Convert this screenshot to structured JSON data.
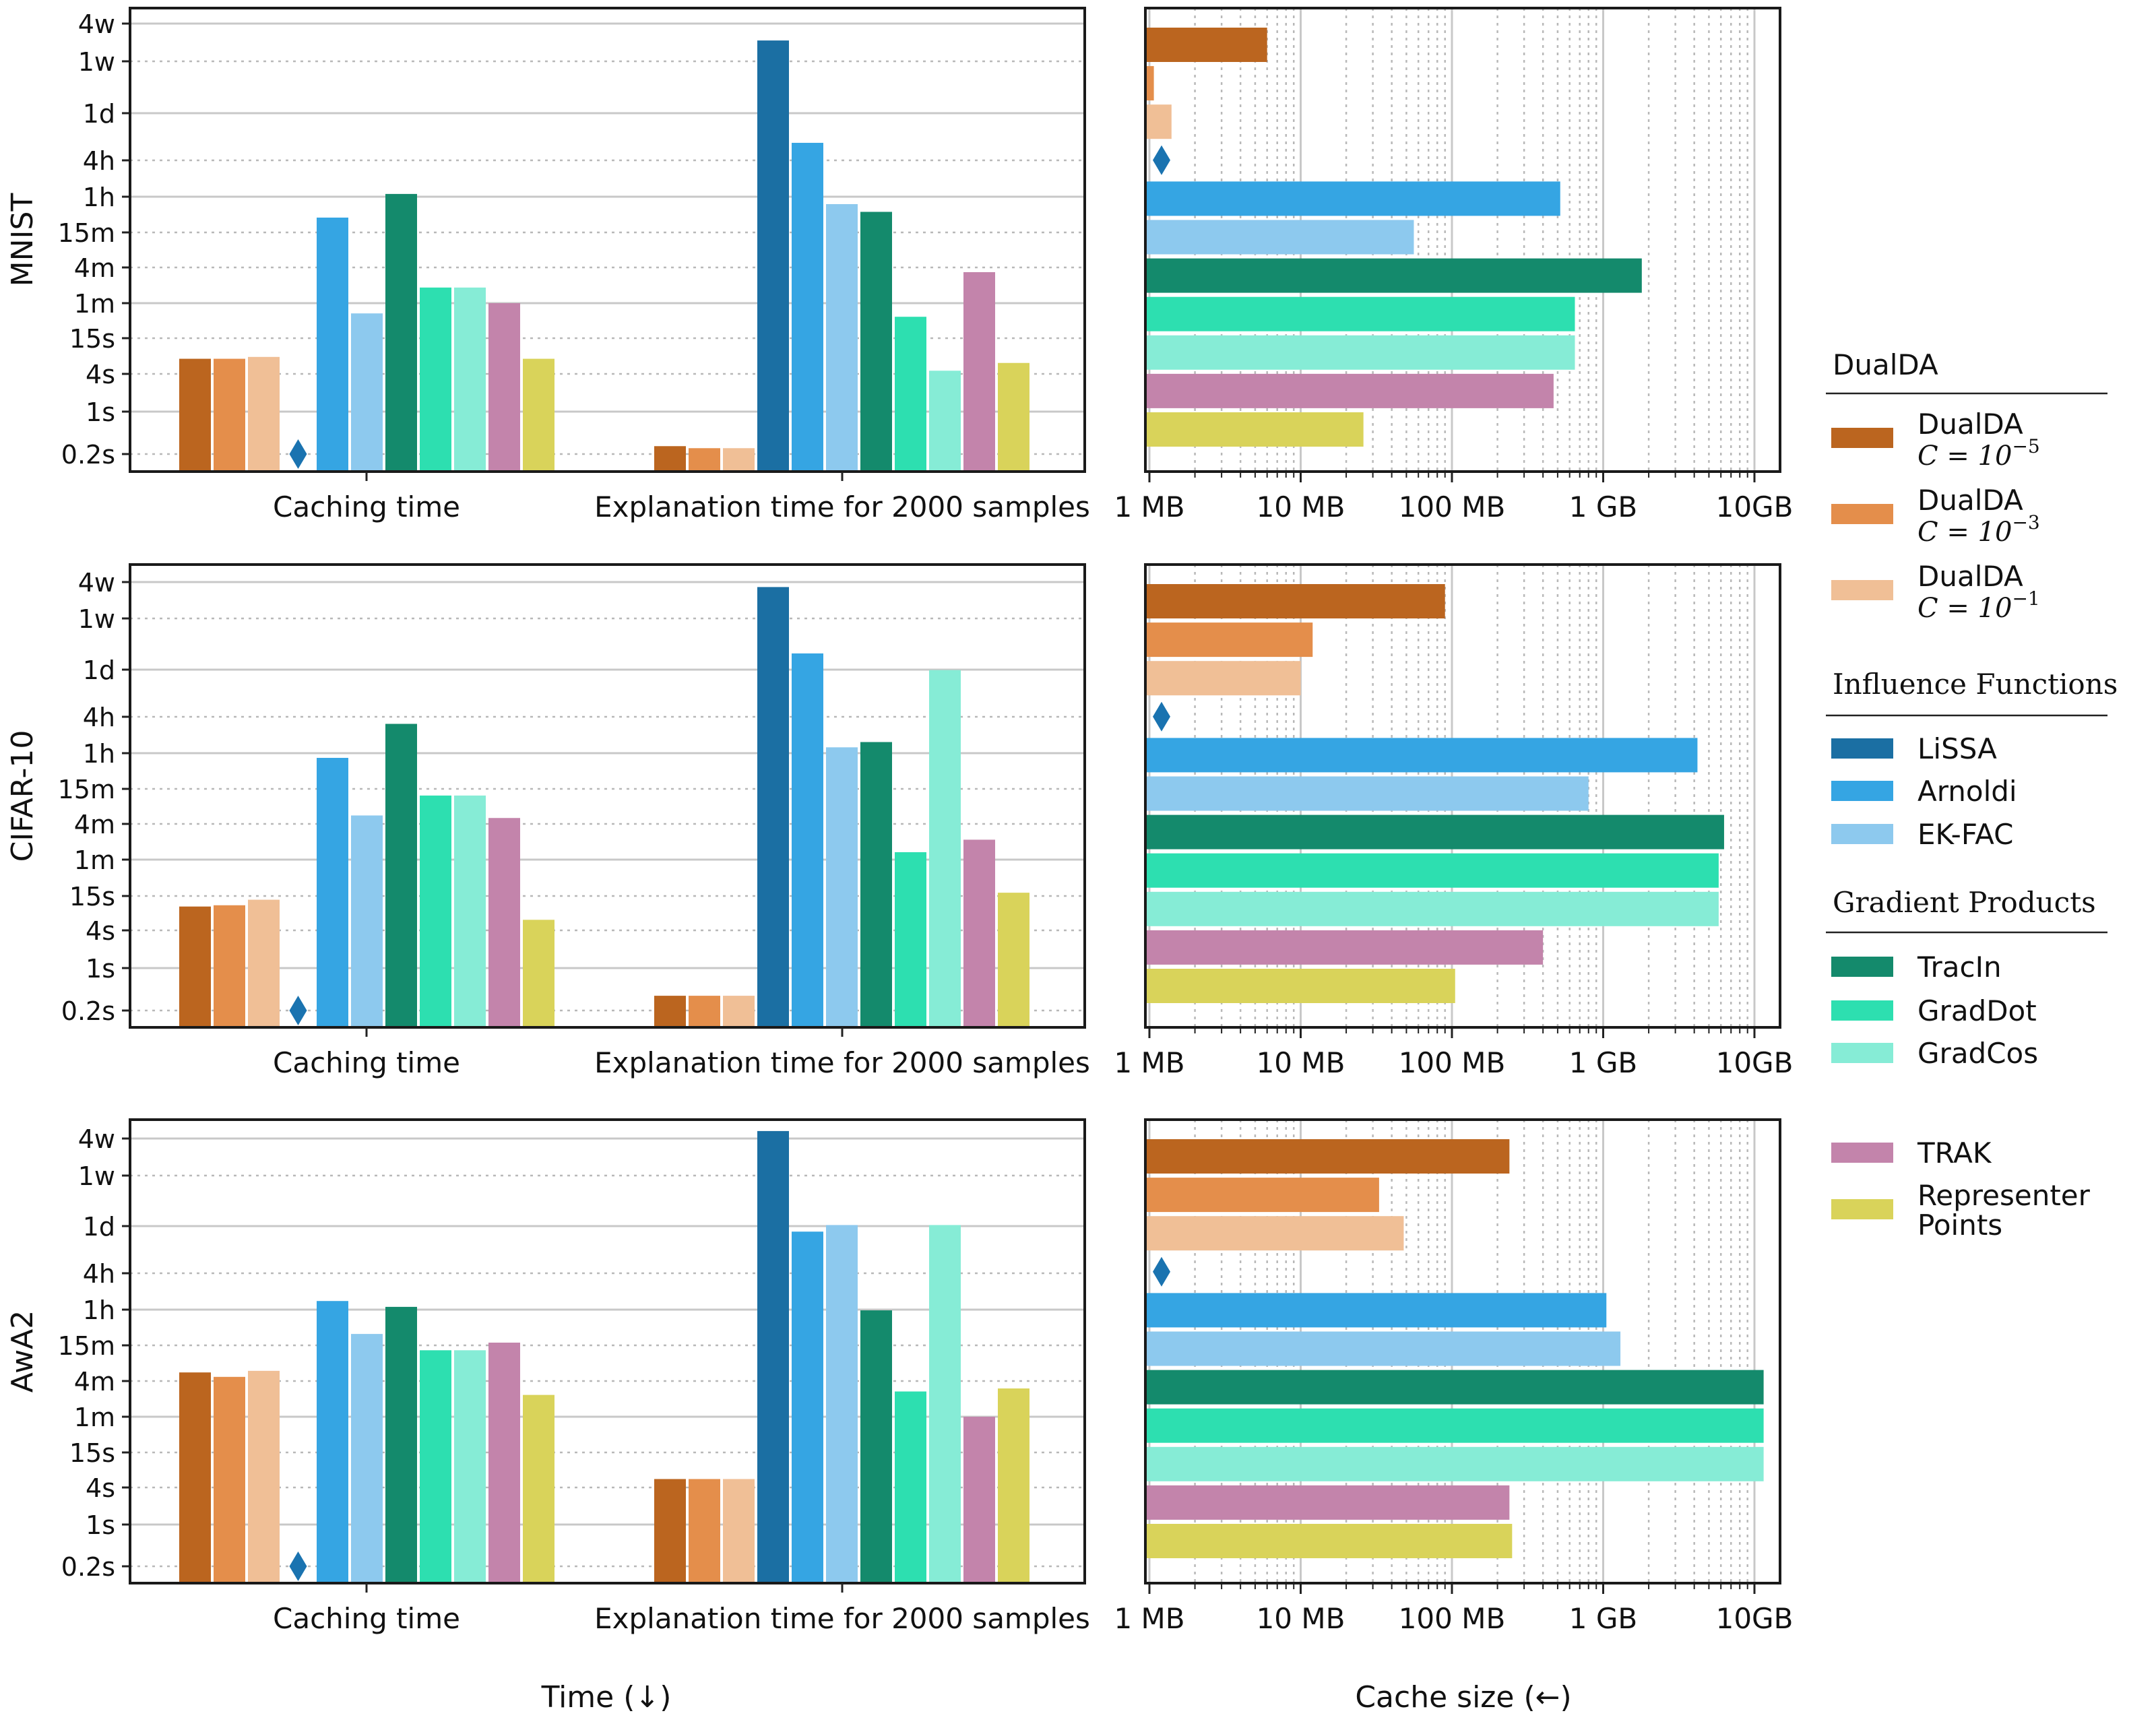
{
  "figure": {
    "xlabel_time": "Time (↓)",
    "xlabel_cache": "Cache size (←)"
  },
  "colors": {
    "DualDA C=1e-5": "#bb651f",
    "DualDA C=1e-3": "#e48e4b",
    "DualDA C=1e-1": "#f0bf96",
    "LiSSA": "#1b6fa3",
    "Arnoldi": "#35a5e3",
    "EK-FAC": "#8dc9ee",
    "TracIn": "#148a6c",
    "GradDot": "#2ddfb0",
    "GradCos": "#86ecd6",
    "TRAK": "#c384ab",
    "Representer Points": "#d9d35a",
    "marker": "#1a73b0"
  },
  "legend": {
    "groups": [
      {
        "title": "DualDA",
        "title_style": "sans",
        "entries": [
          {
            "name": "DualDA C=1e-5",
            "line1": "DualDA",
            "line2_prefix": "C = 10",
            "line2_exp": "−5"
          },
          {
            "name": "DualDA C=1e-3",
            "line1": "DualDA",
            "line2_prefix": "C = 10",
            "line2_exp": "−3"
          },
          {
            "name": "DualDA C=1e-1",
            "line1": "DualDA",
            "line2_prefix": "C = 10",
            "line2_exp": "−1"
          }
        ]
      },
      {
        "title": "Influence Functions",
        "title_style": "serif",
        "entries": [
          {
            "name": "LiSSA",
            "line1": "LiSSA"
          },
          {
            "name": "Arnoldi",
            "line1": "Arnoldi"
          },
          {
            "name": "EK-FAC",
            "line1": "EK-FAC"
          }
        ]
      },
      {
        "title": "Gradient Products",
        "title_style": "serif",
        "entries": [
          {
            "name": "TracIn",
            "line1": "TracIn"
          },
          {
            "name": "GradDot",
            "line1": "GradDot"
          },
          {
            "name": "GradCos",
            "line1": "GradCos"
          }
        ]
      },
      {
        "title": "",
        "title_style": "serif",
        "entries": [
          {
            "name": "TRAK",
            "line1": "TRAK"
          },
          {
            "name": "Representer Points",
            "line1": "Representer",
            "line2": "Points"
          }
        ]
      }
    ]
  },
  "chart_data": [
    {
      "type": "bar",
      "dataset": "MNIST",
      "ylabel": "MNIST",
      "yscale": "log",
      "unit": "seconds",
      "yticks": [
        {
          "label": "0.2s",
          "value": 0.2
        },
        {
          "label": "1s",
          "value": 1
        },
        {
          "label": "4s",
          "value": 4
        },
        {
          "label": "15s",
          "value": 15
        },
        {
          "label": "1m",
          "value": 60
        },
        {
          "label": "4m",
          "value": 240
        },
        {
          "label": "15m",
          "value": 900
        },
        {
          "label": "1h",
          "value": 3600
        },
        {
          "label": "4h",
          "value": 14400
        },
        {
          "label": "1d",
          "value": 86400
        },
        {
          "label": "1w",
          "value": 604800
        },
        {
          "label": "4w",
          "value": 2419200
        }
      ],
      "categories": [
        "Caching time",
        "Explanation time for 2000 samples"
      ],
      "series": [
        {
          "name": "DualDA C=1e-5",
          "values": [
            7,
            0.27
          ]
        },
        {
          "name": "DualDA C=1e-3",
          "values": [
            7,
            0.25
          ]
        },
        {
          "name": "DualDA C=1e-1",
          "values": [
            7.5,
            0.25
          ]
        },
        {
          "name": "LiSSA",
          "values": [
            null,
            1300000
          ]
        },
        {
          "name": "Arnoldi",
          "values": [
            1600,
            28000
          ]
        },
        {
          "name": "EK-FAC",
          "values": [
            40,
            2700
          ]
        },
        {
          "name": "TracIn",
          "values": [
            4000,
            2000
          ]
        },
        {
          "name": "GradDot",
          "values": [
            110,
            35
          ]
        },
        {
          "name": "GradCos",
          "values": [
            110,
            4.5
          ]
        },
        {
          "name": "TRAK",
          "values": [
            60,
            200
          ]
        },
        {
          "name": "Representer Points",
          "values": [
            7,
            6
          ]
        }
      ],
      "markers": [
        {
          "series": "LiSSA",
          "category": "Caching time"
        }
      ]
    },
    {
      "type": "bar",
      "dataset": "CIFAR-10",
      "ylabel": "CIFAR-10",
      "yscale": "log",
      "unit": "seconds",
      "yticks": [
        {
          "label": "0.2s",
          "value": 0.2
        },
        {
          "label": "1s",
          "value": 1
        },
        {
          "label": "4s",
          "value": 4
        },
        {
          "label": "15s",
          "value": 15
        },
        {
          "label": "1m",
          "value": 60
        },
        {
          "label": "4m",
          "value": 240
        },
        {
          "label": "15m",
          "value": 900
        },
        {
          "label": "1h",
          "value": 3600
        },
        {
          "label": "4h",
          "value": 14400
        },
        {
          "label": "1d",
          "value": 86400
        },
        {
          "label": "1w",
          "value": 604800
        },
        {
          "label": "4w",
          "value": 2419200
        }
      ],
      "categories": [
        "Caching time",
        "Explanation time for 2000 samples"
      ],
      "series": [
        {
          "name": "DualDA C=1e-5",
          "values": [
            10,
            0.35
          ]
        },
        {
          "name": "DualDA C=1e-3",
          "values": [
            10.5,
            0.35
          ]
        },
        {
          "name": "DualDA C=1e-1",
          "values": [
            13,
            0.35
          ]
        },
        {
          "name": "LiSSA",
          "values": [
            null,
            2000000
          ]
        },
        {
          "name": "Arnoldi",
          "values": [
            3000,
            160000
          ]
        },
        {
          "name": "EK-FAC",
          "values": [
            330,
            4500
          ]
        },
        {
          "name": "TracIn",
          "values": [
            11000,
            5500
          ]
        },
        {
          "name": "GradDot",
          "values": [
            700,
            80
          ]
        },
        {
          "name": "GradCos",
          "values": [
            700,
            85000
          ]
        },
        {
          "name": "TRAK",
          "values": [
            300,
            130
          ]
        },
        {
          "name": "Representer Points",
          "values": [
            6,
            17
          ]
        }
      ],
      "markers": [
        {
          "series": "LiSSA",
          "category": "Caching time"
        }
      ]
    },
    {
      "type": "bar",
      "dataset": "AwA2",
      "ylabel": "AwA2",
      "yscale": "log",
      "unit": "seconds",
      "yticks": [
        {
          "label": "0.2s",
          "value": 0.2
        },
        {
          "label": "1s",
          "value": 1
        },
        {
          "label": "4s",
          "value": 4
        },
        {
          "label": "15s",
          "value": 15
        },
        {
          "label": "1m",
          "value": 60
        },
        {
          "label": "4m",
          "value": 240
        },
        {
          "label": "15m",
          "value": 900
        },
        {
          "label": "1h",
          "value": 3600
        },
        {
          "label": "4h",
          "value": 14400
        },
        {
          "label": "1d",
          "value": 86400
        },
        {
          "label": "1w",
          "value": 604800
        },
        {
          "label": "4w",
          "value": 2419200
        }
      ],
      "categories": [
        "Caching time",
        "Explanation time for 2000 samples"
      ],
      "series": [
        {
          "name": "DualDA C=1e-5",
          "values": [
            330,
            5.5
          ]
        },
        {
          "name": "DualDA C=1e-3",
          "values": [
            280,
            5.5
          ]
        },
        {
          "name": "DualDA C=1e-1",
          "values": [
            350,
            5.5
          ]
        },
        {
          "name": "LiSSA",
          "values": [
            null,
            3200000
          ]
        },
        {
          "name": "Arnoldi",
          "values": [
            5000,
            70000
          ]
        },
        {
          "name": "EK-FAC",
          "values": [
            1400,
            90000
          ]
        },
        {
          "name": "TracIn",
          "values": [
            4000,
            3500
          ]
        },
        {
          "name": "GradDot",
          "values": [
            750,
            160
          ]
        },
        {
          "name": "GradCos",
          "values": [
            750,
            90000
          ]
        },
        {
          "name": "TRAK",
          "values": [
            1000,
            60
          ]
        },
        {
          "name": "Representer Points",
          "values": [
            140,
            180
          ]
        }
      ],
      "markers": [
        {
          "series": "LiSSA",
          "category": "Caching time"
        }
      ]
    },
    {
      "type": "bar",
      "orientation": "horizontal",
      "dataset": "MNIST",
      "xscale": "log",
      "unit": "MB",
      "xticks": [
        {
          "label": "1 MB",
          "value": 1
        },
        {
          "label": "10 MB",
          "value": 10
        },
        {
          "label": "100 MB",
          "value": 100
        },
        {
          "label": "1 GB",
          "value": 1000
        },
        {
          "label": "10GB",
          "value": 10000
        }
      ],
      "series": [
        {
          "name": "DualDA C=1e-5",
          "value": 6
        },
        {
          "name": "DualDA C=1e-3",
          "value": 1.07
        },
        {
          "name": "DualDA C=1e-1",
          "value": 1.4
        },
        {
          "name": "LiSSA",
          "value": null
        },
        {
          "name": "Arnoldi",
          "value": 520
        },
        {
          "name": "EK-FAC",
          "value": 56
        },
        {
          "name": "TracIn",
          "value": 1800
        },
        {
          "name": "GradDot",
          "value": 650
        },
        {
          "name": "GradCos",
          "value": 650
        },
        {
          "name": "TRAK",
          "value": 470
        },
        {
          "name": "Representer Points",
          "value": 26
        }
      ],
      "markers": [
        {
          "series": "LiSSA"
        }
      ]
    },
    {
      "type": "bar",
      "orientation": "horizontal",
      "dataset": "CIFAR-10",
      "xscale": "log",
      "unit": "MB",
      "xticks": [
        {
          "label": "1 MB",
          "value": 1
        },
        {
          "label": "10 MB",
          "value": 10
        },
        {
          "label": "100 MB",
          "value": 100
        },
        {
          "label": "1 GB",
          "value": 1000
        },
        {
          "label": "10GB",
          "value": 10000
        }
      ],
      "series": [
        {
          "name": "DualDA C=1e-5",
          "value": 90
        },
        {
          "name": "DualDA C=1e-3",
          "value": 12
        },
        {
          "name": "DualDA C=1e-1",
          "value": 10
        },
        {
          "name": "LiSSA",
          "value": null
        },
        {
          "name": "Arnoldi",
          "value": 4200
        },
        {
          "name": "EK-FAC",
          "value": 800
        },
        {
          "name": "TracIn",
          "value": 6300
        },
        {
          "name": "GradDot",
          "value": 5800
        },
        {
          "name": "GradCos",
          "value": 5800
        },
        {
          "name": "TRAK",
          "value": 400
        },
        {
          "name": "Representer Points",
          "value": 105
        }
      ],
      "markers": [
        {
          "series": "LiSSA"
        }
      ]
    },
    {
      "type": "bar",
      "orientation": "horizontal",
      "dataset": "AwA2",
      "xscale": "log",
      "unit": "MB",
      "xticks": [
        {
          "label": "1 MB",
          "value": 1
        },
        {
          "label": "10 MB",
          "value": 10
        },
        {
          "label": "100 MB",
          "value": 100
        },
        {
          "label": "1 GB",
          "value": 1000
        },
        {
          "label": "10GB",
          "value": 10000
        }
      ],
      "series": [
        {
          "name": "DualDA C=1e-5",
          "value": 240
        },
        {
          "name": "DualDA C=1e-3",
          "value": 33
        },
        {
          "name": "DualDA C=1e-1",
          "value": 48
        },
        {
          "name": "LiSSA",
          "value": null
        },
        {
          "name": "Arnoldi",
          "value": 1050
        },
        {
          "name": "EK-FAC",
          "value": 1300
        },
        {
          "name": "TracIn",
          "value": 11500
        },
        {
          "name": "GradDot",
          "value": 11500
        },
        {
          "name": "GradCos",
          "value": 11500
        },
        {
          "name": "TRAK",
          "value": 240
        },
        {
          "name": "Representer Points",
          "value": 250
        }
      ],
      "markers": [
        {
          "series": "LiSSA"
        }
      ]
    }
  ]
}
